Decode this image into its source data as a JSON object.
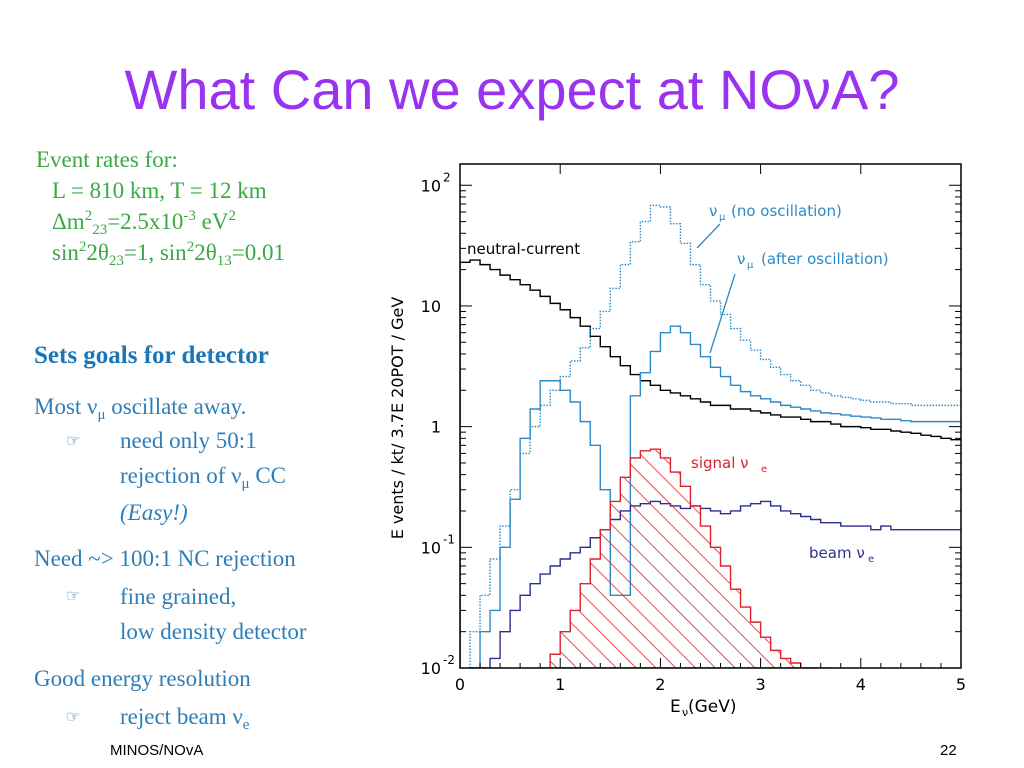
{
  "slide": {
    "title": "What Can we expect at NOνA?",
    "footer_left": "MINOS/NOvA",
    "page_number": "22"
  },
  "event_rates": {
    "heading": "Event rates for:",
    "line1": "L = 810 km, T = 12 km",
    "line2_a": "Δm",
    "line2_sup1": "2",
    "line2_sub": "23",
    "line2_b": "=2.5x10",
    "line2_sup2": "-3",
    "line2_c": " eV",
    "line2_sup3": "2",
    "line3_a": "sin",
    "line3_sup1": "2",
    "line3_b": "2θ",
    "line3_sub1": "23",
    "line3_c": "=1, sin",
    "line3_sup2": "2",
    "line3_d": "2θ",
    "line3_sub2": "13",
    "line3_e": "=0.01"
  },
  "goals": {
    "heading": "Sets goals for detector",
    "item1": "Most ν",
    "item1_sub": "μ",
    "item1_rest": " oscillate away.",
    "item1_sub1": "need only 50:1",
    "item1_sub2a": "rejection of ν",
    "item1_sub2_sub": "μ",
    "item1_sub2b": " CC",
    "item1_sub3": "(Easy!)",
    "item2": "Need ~> 100:1 NC rejection",
    "item2_sub1": "fine grained,",
    "item2_sub2": "low density detector",
    "item3": "Good energy resolution",
    "item3_sub1": "reject beam ν",
    "item3_sub1_sub": "e",
    "bullet_glyph": "☞"
  },
  "chart_data": {
    "type": "line",
    "scale_y": "log",
    "xlim": [
      0,
      5
    ],
    "ylim": [
      0.01,
      150
    ],
    "xlabel": "E",
    "xlabel_sub": "ν",
    "xlabel_unit": " (GeV)",
    "ylabel": "E vents / kt/ 3.7E 20POT / GeV",
    "x_ticks": [
      "0",
      "1",
      "2",
      "3",
      "4",
      "5"
    ],
    "y_ticks": [
      {
        "base": "10",
        "exp": "2"
      },
      {
        "base": "10",
        "exp": ""
      },
      {
        "base": "1",
        "exp": ""
      },
      {
        "base": "10",
        "exp": "-1"
      },
      {
        "base": "10",
        "exp": "-2"
      }
    ],
    "labels": {
      "nc": "neutral-current",
      "numu_noosc": "(no oscillation)",
      "numu_osc": "(after oscillation)",
      "numu_symbol": "ν",
      "numu_sub": "μ",
      "signal": "signal ν",
      "signal_sub": "e",
      "beam": "beam ν",
      "beam_sub": "e"
    },
    "bin_width": 0.1,
    "series": [
      {
        "name": "neutral-current",
        "color": "#000000",
        "style": "solid",
        "x": [
          0.1,
          0.2,
          0.3,
          0.4,
          0.5,
          0.6,
          0.7,
          0.8,
          0.9,
          1.0,
          1.1,
          1.2,
          1.3,
          1.4,
          1.5,
          1.6,
          1.7,
          1.8,
          1.9,
          2.0,
          2.1,
          2.2,
          2.3,
          2.4,
          2.5,
          2.6,
          2.7,
          2.8,
          2.9,
          3.0,
          3.1,
          3.2,
          3.3,
          3.4,
          3.5,
          3.6,
          3.7,
          3.8,
          3.9,
          4.0,
          4.1,
          4.2,
          4.3,
          4.4,
          4.5,
          4.6,
          4.7,
          4.8,
          4.9,
          5.0
        ],
        "values": [
          23,
          24,
          22,
          20,
          18,
          16.5,
          15,
          13.5,
          12,
          10.5,
          9.3,
          8,
          6.8,
          5.6,
          4.6,
          3.8,
          3.2,
          2.7,
          2.4,
          2.2,
          2.0,
          1.9,
          1.8,
          1.7,
          1.6,
          1.5,
          1.5,
          1.4,
          1.4,
          1.35,
          1.3,
          1.25,
          1.2,
          1.2,
          1.15,
          1.1,
          1.1,
          1.05,
          1.0,
          1.0,
          0.98,
          0.95,
          0.95,
          0.92,
          0.9,
          0.88,
          0.85,
          0.83,
          0.8,
          0.78
        ]
      },
      {
        "name": "ν_μ (no oscillation)",
        "color": "#2d8ac7",
        "style": "dotted",
        "x": [
          0.2,
          0.3,
          0.4,
          0.5,
          0.6,
          0.7,
          0.8,
          0.9,
          1.0,
          1.1,
          1.2,
          1.3,
          1.4,
          1.5,
          1.6,
          1.7,
          1.8,
          1.9,
          2.0,
          2.1,
          2.2,
          2.3,
          2.4,
          2.5,
          2.6,
          2.7,
          2.8,
          2.9,
          3.0,
          3.1,
          3.2,
          3.3,
          3.4,
          3.5,
          3.6,
          3.7,
          3.8,
          3.9,
          4.0,
          4.1,
          4.2,
          4.3,
          4.4,
          4.5,
          4.6,
          4.7,
          4.8,
          4.9,
          5.0
        ],
        "values": [
          0.02,
          0.04,
          0.08,
          0.15,
          0.3,
          0.6,
          1.0,
          1.5,
          2.0,
          2.6,
          3.5,
          4.5,
          6.5,
          9,
          14,
          22,
          34,
          50,
          68,
          66,
          48,
          33,
          22,
          15,
          11,
          8.5,
          6.5,
          5.2,
          4.3,
          3.6,
          3.1,
          2.7,
          2.4,
          2.2,
          2.0,
          1.9,
          1.8,
          1.75,
          1.7,
          1.65,
          1.6,
          1.6,
          1.55,
          1.55,
          1.5,
          1.5,
          1.5,
          1.5,
          1.5
        ]
      },
      {
        "name": "ν_μ (after oscillation)",
        "color": "#2d8ac7",
        "style": "solid",
        "x": [
          0.2,
          0.3,
          0.4,
          0.5,
          0.6,
          0.7,
          0.8,
          0.9,
          1.0,
          1.1,
          1.2,
          1.3,
          1.4,
          1.5,
          1.6,
          1.7,
          1.8,
          1.9,
          2.0,
          2.1,
          2.2,
          2.3,
          2.4,
          2.5,
          2.6,
          2.7,
          2.8,
          2.9,
          3.0,
          3.1,
          3.2,
          3.3,
          3.4,
          3.5,
          3.6,
          3.7,
          3.8,
          3.9,
          4.0,
          4.1,
          4.2,
          4.3,
          4.4,
          4.5,
          4.6,
          4.7,
          4.8,
          4.9,
          5.0
        ],
        "values": [
          0.01,
          0.02,
          0.03,
          0.1,
          0.25,
          0.8,
          1.4,
          2.4,
          2.4,
          2.0,
          1.6,
          1.1,
          0.7,
          0.3,
          0.04,
          0.04,
          1.8,
          2.8,
          4.2,
          6.0,
          6.8,
          6.0,
          4.8,
          3.8,
          3.1,
          2.6,
          2.2,
          1.95,
          1.8,
          1.7,
          1.6,
          1.5,
          1.45,
          1.4,
          1.35,
          1.3,
          1.28,
          1.25,
          1.22,
          1.2,
          1.18,
          1.15,
          1.15,
          1.12,
          1.1,
          1.1,
          1.1,
          1.1,
          1.1
        ]
      },
      {
        "name": "beam ν_e",
        "color": "#2b2f8f",
        "style": "solid",
        "x": [
          0.2,
          0.3,
          0.4,
          0.5,
          0.6,
          0.7,
          0.8,
          0.9,
          1.0,
          1.1,
          1.2,
          1.3,
          1.4,
          1.5,
          1.6,
          1.7,
          1.8,
          1.9,
          2.0,
          2.1,
          2.2,
          2.3,
          2.4,
          2.5,
          2.6,
          2.7,
          2.8,
          2.9,
          3.0,
          3.1,
          3.2,
          3.3,
          3.4,
          3.5,
          3.6,
          3.7,
          3.8,
          3.9,
          4.0,
          4.1,
          4.2,
          4.3,
          4.4,
          4.5,
          4.6,
          4.7,
          4.8,
          4.9,
          5.0
        ],
        "values": [
          0.01,
          0.01,
          0.012,
          0.02,
          0.03,
          0.04,
          0.05,
          0.06,
          0.07,
          0.08,
          0.09,
          0.1,
          0.12,
          0.14,
          0.17,
          0.2,
          0.22,
          0.23,
          0.24,
          0.23,
          0.22,
          0.21,
          0.22,
          0.21,
          0.2,
          0.19,
          0.2,
          0.22,
          0.23,
          0.24,
          0.22,
          0.2,
          0.19,
          0.18,
          0.17,
          0.16,
          0.16,
          0.15,
          0.15,
          0.15,
          0.14,
          0.15,
          0.14,
          0.14,
          0.14,
          0.14,
          0.14,
          0.14,
          0.14
        ]
      },
      {
        "name": "signal ν_e",
        "color": "#d9232d",
        "style": "hatched",
        "x": [
          0.9,
          1.0,
          1.1,
          1.2,
          1.3,
          1.4,
          1.5,
          1.6,
          1.7,
          1.8,
          1.9,
          2.0,
          2.1,
          2.2,
          2.3,
          2.4,
          2.5,
          2.6,
          2.7,
          2.8,
          2.9,
          3.0,
          3.1,
          3.2,
          3.3,
          3.4,
          3.5,
          3.6,
          3.7
        ],
        "values": [
          0.01,
          0.013,
          0.02,
          0.03,
          0.05,
          0.08,
          0.14,
          0.24,
          0.38,
          0.55,
          0.63,
          0.65,
          0.55,
          0.42,
          0.32,
          0.22,
          0.15,
          0.1,
          0.07,
          0.045,
          0.032,
          0.024,
          0.018,
          0.014,
          0.012,
          0.011,
          0.01,
          0.01,
          0.01
        ]
      }
    ]
  }
}
